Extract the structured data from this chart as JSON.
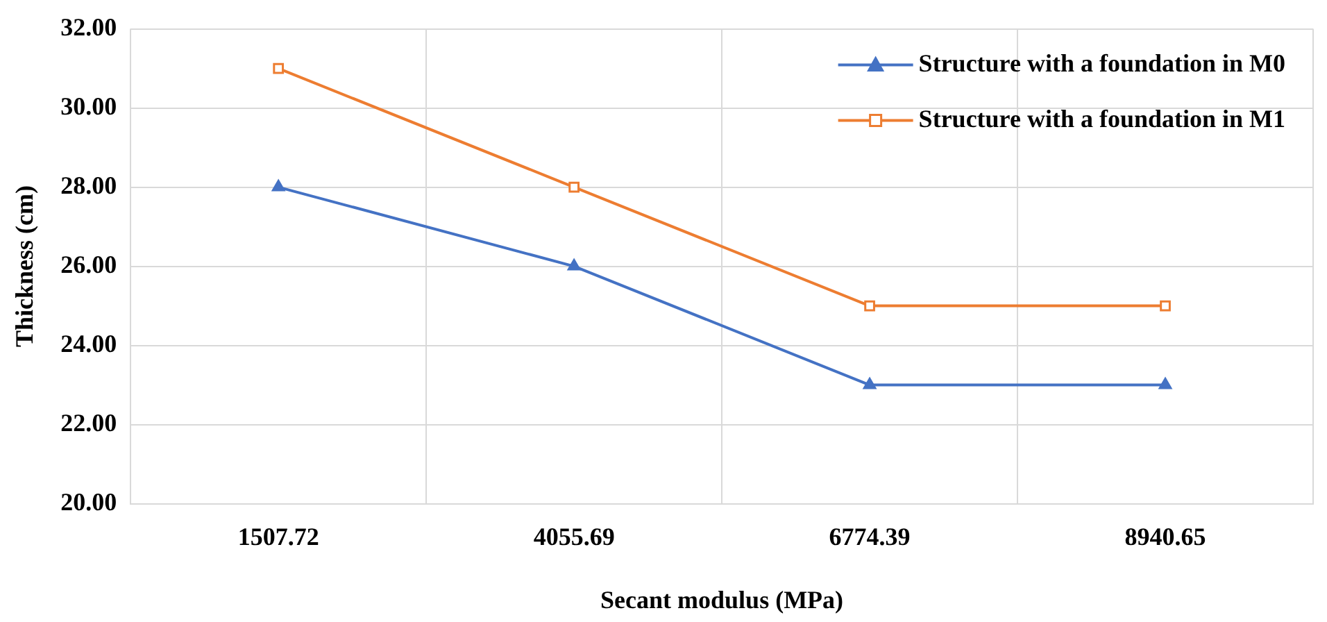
{
  "chart_data": {
    "type": "line",
    "xlabel": "Secant modulus (MPa)",
    "ylabel": "Thickness (cm)",
    "categories": [
      "1507.72",
      "4055.69",
      "6774.39",
      "8940.65"
    ],
    "series": [
      {
        "name": "Structure with a foundation in M0",
        "color": "#4472c4",
        "values": [
          28,
          26,
          23,
          23
        ],
        "marker": "triangle"
      },
      {
        "name": "Structure with a foundation in M1",
        "color": "#ed7d31",
        "values": [
          31,
          28,
          25,
          25
        ],
        "marker": "square"
      }
    ],
    "ylim": [
      20,
      32
    ],
    "yticks": [
      {
        "value": 20,
        "label": "20.00"
      },
      {
        "value": 22,
        "label": "22.00"
      },
      {
        "value": 24,
        "label": "24.00"
      },
      {
        "value": 26,
        "label": "26.00"
      },
      {
        "value": 28,
        "label": "28.00"
      },
      {
        "value": 30,
        "label": "30.00"
      },
      {
        "value": 32,
        "label": "32.00"
      }
    ],
    "grid": true,
    "legend": "top right",
    "line_style": "solid"
  }
}
